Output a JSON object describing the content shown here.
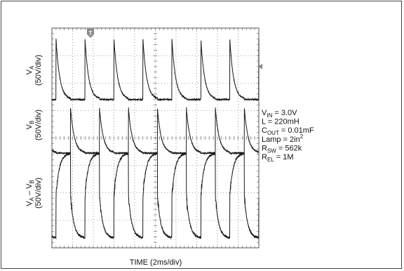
{
  "chart_data": {
    "type": "line",
    "xlabel": "TIME (2ms/div)",
    "x_divisions": 10,
    "y_divisions": 8,
    "trigger_marker": "T",
    "traces": [
      {
        "label_main": "V",
        "label_sub": "A",
        "label_suffix": "",
        "scale": "(50V/div)",
        "low_div": 0.4,
        "high_div": 2.6,
        "period_div": 1.4,
        "phase_div": 0.2,
        "duty": 0.5,
        "rise_tau_div": 0.18,
        "noise": 0.05
      },
      {
        "label_main": "V",
        "label_sub": "B",
        "label_suffix": "",
        "scale": "(50V/div)",
        "low_div": 2.9,
        "high_div": 4.55,
        "period_div": 1.4,
        "phase_div": 0.9,
        "duty": 0.5,
        "rise_tau_div": 0.18,
        "noise": 0.05
      },
      {
        "label_main": "V",
        "label_sub": "A",
        "label_suffix": " – V",
        "label_sub2": "B",
        "scale": "(50V/div)",
        "center_div": 6.1,
        "amplitude_div": 1.55,
        "period_div": 1.4,
        "phase_div": 0.2,
        "noise": 0.08
      }
    ]
  },
  "annotations": [
    {
      "main": "V",
      "sub": "IN",
      "rest": " = 3.0V",
      "sup": ""
    },
    {
      "main": "L = 220mH",
      "sub": "",
      "rest": "",
      "sup": ""
    },
    {
      "main": "C",
      "sub": "OUT",
      "rest": " = 0.01mF",
      "sup": ""
    },
    {
      "main": "Lamp = 2in",
      "sub": "",
      "rest": "",
      "sup": "2"
    },
    {
      "main": "R",
      "sub": "SW",
      "rest": " = 562k",
      "sup": ""
    },
    {
      "main": "R",
      "sub": "EL",
      "rest": " = 1M",
      "sup": ""
    }
  ],
  "colors": {
    "trace": "#1a1a1a",
    "grid": "#555555",
    "background": "#ffffff"
  }
}
